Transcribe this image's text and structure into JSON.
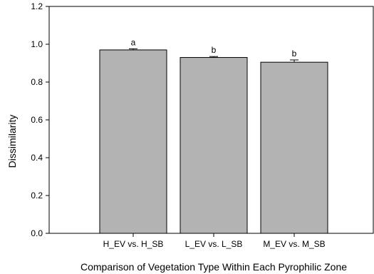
{
  "chart_data": {
    "type": "bar",
    "title": "",
    "xlabel": "Comparison of Vegetation Type Within Each Pyrophilic Zone",
    "ylabel": "Dissimilarity",
    "categories": [
      "H_EV vs. H_SB",
      "L_EV vs. L_SB",
      "M_EV vs. M_SB"
    ],
    "values": [
      0.97,
      0.93,
      0.905
    ],
    "error": [
      0.006,
      0.005,
      0.012
    ],
    "significance_letters": [
      "a",
      "b",
      "b"
    ],
    "ylim": [
      0,
      1.2
    ],
    "yticks": [
      "0.0",
      "0.2",
      "0.4",
      "0.6",
      "0.8",
      "1.0",
      "1.2"
    ],
    "grid": false,
    "legend": "none",
    "bar_color": "#b3b3b3",
    "edge_color": "#000000"
  }
}
